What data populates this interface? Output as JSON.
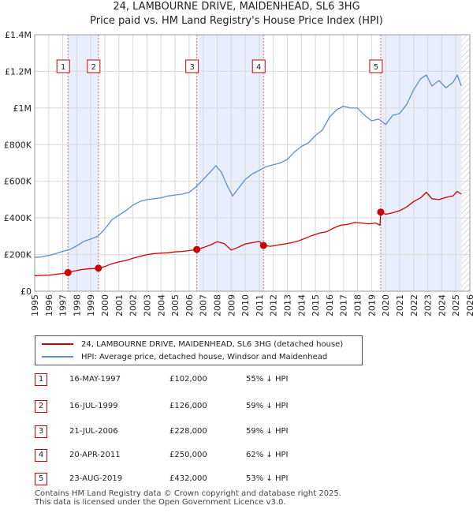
{
  "header": {
    "title_line1": "24, LAMBOURNE DRIVE, MAIDENHEAD, SL6 3HG",
    "title_line2": "Price paid vs. HM Land Registry's House Price Index (HPI)"
  },
  "chart_data": {
    "type": "line",
    "ylim": [
      0,
      1400000
    ],
    "xlim": [
      1995,
      2026
    ],
    "y_ticks": [
      {
        "value": 0,
        "label": "£0"
      },
      {
        "value": 200000,
        "label": "£200K"
      },
      {
        "value": 400000,
        "label": "£400K"
      },
      {
        "value": 600000,
        "label": "£600K"
      },
      {
        "value": 800000,
        "label": "£800K"
      },
      {
        "value": 1000000,
        "label": "£1M"
      },
      {
        "value": 1200000,
        "label": "£1.2M"
      },
      {
        "value": 1400000,
        "label": "£1.4M"
      }
    ],
    "x_ticks": [
      "1995",
      "1996",
      "1997",
      "1998",
      "1999",
      "2000",
      "2001",
      "2002",
      "2003",
      "2004",
      "2005",
      "2006",
      "2007",
      "2008",
      "2009",
      "2010",
      "2011",
      "2012",
      "2013",
      "2014",
      "2015",
      "2016",
      "2017",
      "2018",
      "2019",
      "2020",
      "2021",
      "2022",
      "2023",
      "2024",
      "2025",
      "2026"
    ],
    "colors": {
      "property": "#cc0000",
      "hpi": "#5b8fd1",
      "shade": "#e8eefb",
      "marker_border": "#cc0000"
    },
    "series": [
      {
        "name": "24, LAMBOURNE DRIVE, MAIDENHEAD, SL6 3HG (detached house)",
        "x": [
          1995.0,
          1995.5,
          1996.0,
          1996.5,
          1997.0,
          1997.37,
          1997.8,
          1998.3,
          1998.8,
          1999.3,
          1999.54,
          2000.0,
          2000.5,
          2001.0,
          2001.5,
          2002.0,
          2002.5,
          2003.0,
          2003.5,
          2004.0,
          2004.5,
          2005.0,
          2005.5,
          2006.0,
          2006.55,
          2007.0,
          2007.5,
          2008.0,
          2008.5,
          2009.0,
          2009.5,
          2010.0,
          2010.5,
          2011.0,
          2011.3,
          2011.8,
          2012.3,
          2012.8,
          2013.3,
          2013.8,
          2014.3,
          2014.8,
          2015.3,
          2015.8,
          2016.3,
          2016.8,
          2017.3,
          2017.8,
          2018.3,
          2018.8,
          2019.3,
          2019.6,
          2019.65,
          2020.0,
          2020.5,
          2021.0,
          2021.5,
          2022.0,
          2022.5,
          2022.9,
          2023.3,
          2023.8,
          2024.3,
          2024.8,
          2025.1,
          2025.4
        ],
        "values": [
          85000,
          86000,
          88000,
          92000,
          97000,
          102000,
          110000,
          118000,
          122000,
          124000,
          126000,
          135000,
          150000,
          160000,
          168000,
          180000,
          190000,
          200000,
          205000,
          208000,
          210000,
          215000,
          217000,
          222000,
          228000,
          238000,
          252000,
          270000,
          260000,
          225000,
          240000,
          258000,
          265000,
          272000,
          250000,
          245000,
          252000,
          258000,
          265000,
          275000,
          290000,
          305000,
          318000,
          325000,
          345000,
          360000,
          365000,
          375000,
          372000,
          368000,
          372000,
          360000,
          432000,
          420000,
          428000,
          440000,
          460000,
          490000,
          510000,
          540000,
          505000,
          500000,
          512000,
          520000,
          545000,
          530000
        ]
      },
      {
        "name": "HPI: Average price, detached house, Windsor and Maidenhead",
        "x": [
          1995.0,
          1995.5,
          1996.0,
          1996.5,
          1997.0,
          1997.5,
          1998.0,
          1998.5,
          1999.0,
          1999.5,
          2000.0,
          2000.5,
          2001.0,
          2001.5,
          2002.0,
          2002.5,
          2003.0,
          2003.5,
          2004.0,
          2004.5,
          2005.0,
          2005.5,
          2006.0,
          2006.5,
          2007.0,
          2007.5,
          2007.9,
          2008.3,
          2008.7,
          2009.1,
          2009.5,
          2010.0,
          2010.5,
          2011.0,
          2011.5,
          2012.0,
          2012.5,
          2013.0,
          2013.5,
          2014.0,
          2014.5,
          2015.0,
          2015.5,
          2016.0,
          2016.5,
          2017.0,
          2017.5,
          2018.0,
          2018.5,
          2019.0,
          2019.5,
          2020.0,
          2020.5,
          2021.0,
          2021.5,
          2022.0,
          2022.5,
          2022.9,
          2023.3,
          2023.8,
          2024.3,
          2024.8,
          2025.1,
          2025.4
        ],
        "values": [
          185000,
          188000,
          195000,
          205000,
          218000,
          228000,
          248000,
          272000,
          285000,
          300000,
          340000,
          390000,
          415000,
          440000,
          470000,
          490000,
          500000,
          505000,
          510000,
          520000,
          525000,
          530000,
          540000,
          570000,
          610000,
          650000,
          685000,
          650000,
          580000,
          520000,
          560000,
          610000,
          640000,
          660000,
          680000,
          690000,
          700000,
          720000,
          760000,
          790000,
          810000,
          850000,
          880000,
          950000,
          990000,
          1010000,
          1000000,
          1000000,
          960000,
          930000,
          940000,
          910000,
          960000,
          970000,
          1020000,
          1100000,
          1160000,
          1180000,
          1120000,
          1150000,
          1110000,
          1140000,
          1180000,
          1120000
        ]
      }
    ],
    "sales": [
      {
        "n": "1",
        "x": 1997.37,
        "value": 102000
      },
      {
        "n": "2",
        "x": 1999.54,
        "value": 126000
      },
      {
        "n": "3",
        "x": 2006.55,
        "value": 228000
      },
      {
        "n": "4",
        "x": 2011.3,
        "value": 250000
      },
      {
        "n": "5",
        "x": 2019.65,
        "value": 432000
      }
    ],
    "shaded_spans": [
      [
        1997.37,
        1999.54
      ],
      [
        2006.55,
        2011.3
      ],
      [
        2019.65,
        2025.4
      ]
    ],
    "hatched_from": 2025.4
  },
  "legend": {
    "property": "24, LAMBOURNE DRIVE, MAIDENHEAD, SL6 3HG (detached house)",
    "hpi": "HPI: Average price, detached house, Windsor and Maidenhead"
  },
  "transactions": [
    {
      "num": "1",
      "date": "16-MAY-1997",
      "price": "£102,000",
      "hpi": "55% ↓ HPI"
    },
    {
      "num": "2",
      "date": "16-JUL-1999",
      "price": "£126,000",
      "hpi": "59% ↓ HPI"
    },
    {
      "num": "3",
      "date": "21-JUL-2006",
      "price": "£228,000",
      "hpi": "59% ↓ HPI"
    },
    {
      "num": "4",
      "date": "20-APR-2011",
      "price": "£250,000",
      "hpi": "62% ↓ HPI"
    },
    {
      "num": "5",
      "date": "23-AUG-2019",
      "price": "£432,000",
      "hpi": "53% ↓ HPI"
    }
  ],
  "footer": {
    "line1": "Contains HM Land Registry data © Crown copyright and database right 2025.",
    "line2": "This data is licensed under the Open Government Licence v3.0."
  }
}
